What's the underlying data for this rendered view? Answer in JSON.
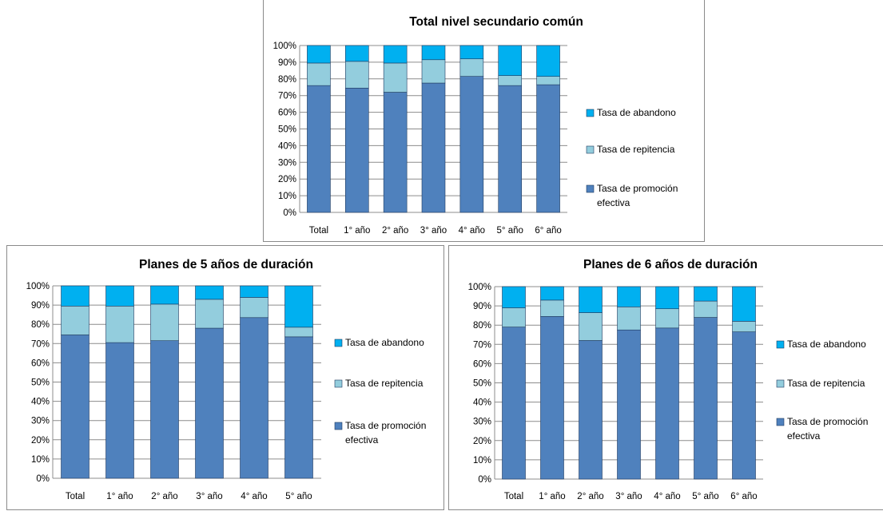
{
  "colors": {
    "promocion": "#4f81bd",
    "repitencia": "#93cddd",
    "abandono": "#00b0f0",
    "grid": "#8c8c8c",
    "bar_stroke": "#1f3a5f"
  },
  "legend": [
    {
      "key": "abandono",
      "lines": [
        "Tasa de abandono"
      ]
    },
    {
      "key": "repitencia",
      "lines": [
        "Tasa de repitencia"
      ]
    },
    {
      "key": "promocion",
      "lines": [
        "Tasa de promoción",
        "efectiva"
      ]
    }
  ],
  "chart_data": [
    {
      "type": "bar",
      "stacked": true,
      "title": "Total nivel secundario común",
      "categories": [
        "Total",
        "1° año",
        "2° año",
        "3° año",
        "4° año",
        "5° año",
        "6° año"
      ],
      "yticks": [
        "0%",
        "10%",
        "20%",
        "30%",
        "40%",
        "50%",
        "60%",
        "70%",
        "80%",
        "90%",
        "100%"
      ],
      "ylim": [
        0,
        100
      ],
      "grid": true,
      "legend_position": "right",
      "series": [
        {
          "name": "Tasa de promoción efectiva",
          "key": "promocion",
          "values": [
            76,
            74.5,
            72,
            77.5,
            81.5,
            76,
            76.5
          ]
        },
        {
          "name": "Tasa de repitencia",
          "key": "repitencia",
          "values": [
            13.5,
            16,
            17.5,
            14,
            10.5,
            6,
            5
          ]
        },
        {
          "name": "Tasa de abandono",
          "key": "abandono",
          "values": [
            10.5,
            9.5,
            10.5,
            8.5,
            8,
            18,
            18.5
          ]
        }
      ]
    },
    {
      "type": "bar",
      "stacked": true,
      "title": "Planes de 5 años de duración",
      "categories": [
        "Total",
        "1° año",
        "2° año",
        "3° año",
        "4° año",
        "5° año"
      ],
      "yticks": [
        "0%",
        "10%",
        "20%",
        "30%",
        "40%",
        "50%",
        "60%",
        "70%",
        "80%",
        "90%",
        "100%"
      ],
      "ylim": [
        0,
        100
      ],
      "grid": true,
      "legend_position": "right",
      "series": [
        {
          "name": "Tasa de promoción efectiva",
          "key": "promocion",
          "values": [
            74.5,
            70.5,
            71.5,
            78,
            83.5,
            73.5
          ]
        },
        {
          "name": "Tasa de repitencia",
          "key": "repitencia",
          "values": [
            15,
            19,
            19,
            15,
            10.5,
            5
          ]
        },
        {
          "name": "Tasa de abandono",
          "key": "abandono",
          "values": [
            10.5,
            10.5,
            9.5,
            7,
            6,
            21.5
          ]
        }
      ]
    },
    {
      "type": "bar",
      "stacked": true,
      "title": "Planes de 6 años de duración",
      "categories": [
        "Total",
        "1° año",
        "2° año",
        "3° año",
        "4° año",
        "5° año",
        "6° año"
      ],
      "yticks": [
        "0%",
        "10%",
        "20%",
        "30%",
        "40%",
        "50%",
        "60%",
        "70%",
        "80%",
        "90%",
        "100%"
      ],
      "ylim": [
        0,
        100
      ],
      "grid": true,
      "legend_position": "right",
      "series": [
        {
          "name": "Tasa de promoción efectiva",
          "key": "promocion",
          "values": [
            79,
            84.5,
            72,
            77.5,
            78.5,
            84,
            76.5
          ]
        },
        {
          "name": "Tasa de repitencia",
          "key": "repitencia",
          "values": [
            10,
            8.5,
            14.5,
            12,
            10,
            8.5,
            5.5
          ]
        },
        {
          "name": "Tasa de abandono",
          "key": "abandono",
          "values": [
            11,
            7,
            13.5,
            10.5,
            11.5,
            7.5,
            18
          ]
        }
      ]
    }
  ]
}
